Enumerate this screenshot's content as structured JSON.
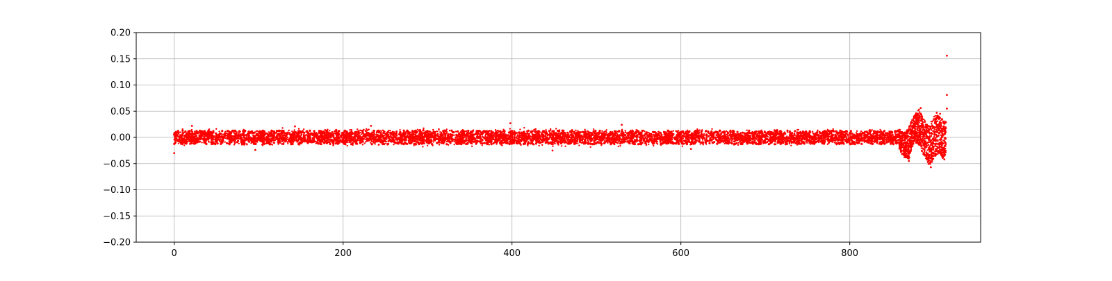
{
  "chart_data": {
    "type": "scatter",
    "title": "",
    "xlabel": "",
    "ylabel": "",
    "xlim": [
      -45,
      955
    ],
    "ylim": [
      -0.2,
      0.2
    ],
    "x_ticks": [
      0,
      200,
      400,
      600,
      800
    ],
    "x_tick_labels": [
      "0",
      "200",
      "400",
      "600",
      "800"
    ],
    "y_ticks": [
      -0.2,
      -0.15,
      -0.1,
      -0.05,
      0.0,
      0.05,
      0.1,
      0.15,
      0.2
    ],
    "y_tick_labels": [
      "−0.20",
      "−0.15",
      "−0.10",
      "−0.05",
      "0.00",
      "0.05",
      "0.10",
      "0.15",
      "0.20"
    ],
    "grid": true,
    "legend": "none",
    "marker_color": "#ff0000",
    "series": [
      {
        "x_range": [
          0,
          915
        ],
        "band_x": [
          0,
          100,
          200,
          300,
          400,
          500,
          600,
          700,
          800,
          850
        ],
        "band_upper": [
          0.018,
          0.018,
          0.02,
          0.02,
          0.019,
          0.019,
          0.018,
          0.018,
          0.018,
          0.018
        ],
        "band_lower": [
          -0.018,
          -0.019,
          -0.02,
          -0.019,
          -0.019,
          -0.02,
          -0.018,
          -0.018,
          -0.018,
          -0.018
        ],
        "points": [
          {
            "x": 0,
            "y": -0.03
          },
          {
            "x": 21,
            "y": 0.022
          },
          {
            "x": 96,
            "y": -0.024
          },
          {
            "x": 143,
            "y": 0.021
          },
          {
            "x": 233,
            "y": 0.022
          },
          {
            "x": 398,
            "y": 0.027
          },
          {
            "x": 448,
            "y": -0.025
          },
          {
            "x": 530,
            "y": 0.024
          },
          {
            "x": 612,
            "y": -0.022
          },
          {
            "x": 870,
            "y": -0.045
          },
          {
            "x": 876,
            "y": 0.04
          },
          {
            "x": 884,
            "y": 0.056
          },
          {
            "x": 891,
            "y": -0.04
          },
          {
            "x": 896,
            "y": -0.057
          },
          {
            "x": 903,
            "y": 0.047
          },
          {
            "x": 907,
            "y": 0.045
          },
          {
            "x": 912,
            "y": -0.042
          },
          {
            "x": 915,
            "y": 0.055
          },
          {
            "x": 915,
            "y": 0.081
          },
          {
            "x": 915,
            "y": 0.156
          }
        ],
        "burst_envelope": [
          {
            "x": 858,
            "lo": -0.02,
            "hi": 0.018
          },
          {
            "x": 862,
            "lo": -0.035,
            "hi": 0.012
          },
          {
            "x": 866,
            "lo": -0.04,
            "hi": 0.01
          },
          {
            "x": 870,
            "lo": -0.045,
            "hi": 0.02
          },
          {
            "x": 874,
            "lo": -0.018,
            "hi": 0.035
          },
          {
            "x": 878,
            "lo": -0.01,
            "hi": 0.045
          },
          {
            "x": 882,
            "lo": -0.015,
            "hi": 0.055
          },
          {
            "x": 886,
            "lo": -0.03,
            "hi": 0.04
          },
          {
            "x": 890,
            "lo": -0.04,
            "hi": 0.03
          },
          {
            "x": 894,
            "lo": -0.055,
            "hi": 0.025
          },
          {
            "x": 898,
            "lo": -0.05,
            "hi": 0.035
          },
          {
            "x": 902,
            "lo": -0.035,
            "hi": 0.045
          },
          {
            "x": 906,
            "lo": -0.03,
            "hi": 0.04
          },
          {
            "x": 910,
            "lo": -0.04,
            "hi": 0.035
          },
          {
            "x": 914,
            "lo": -0.035,
            "hi": 0.03
          }
        ]
      }
    ]
  }
}
